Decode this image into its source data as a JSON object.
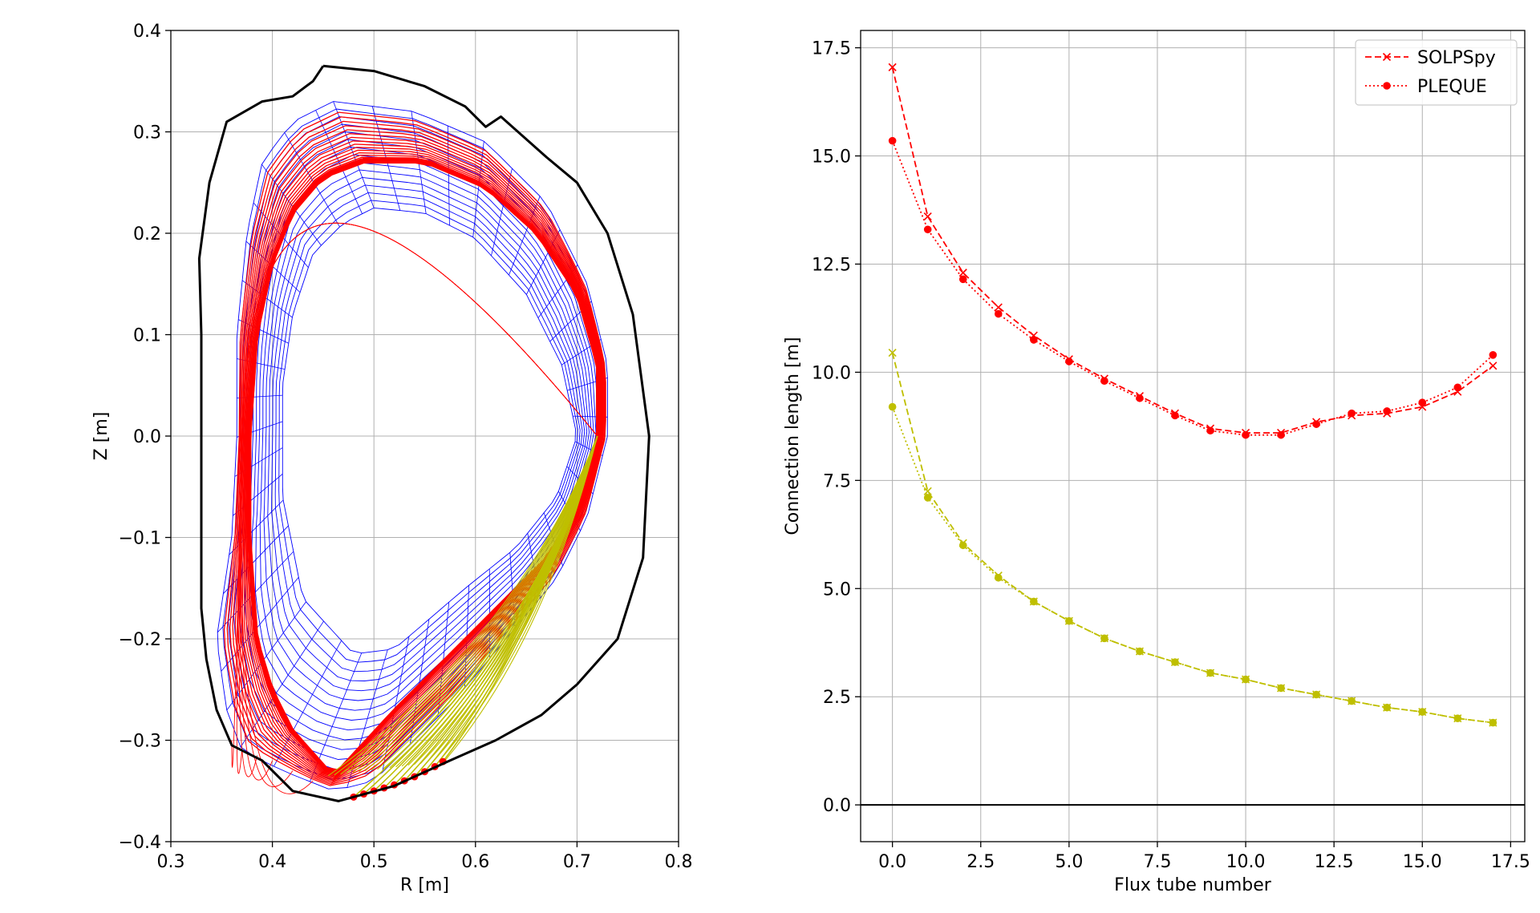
{
  "chart_data": [
    {
      "type": "line",
      "title": "",
      "xlabel": "R [m]",
      "ylabel": "Z [m]",
      "xlim": [
        0.3,
        0.8
      ],
      "ylim": [
        -0.4,
        0.4
      ],
      "xticks": [
        0.3,
        0.4,
        0.5,
        0.6,
        0.7,
        0.8
      ],
      "xtick_labels": [
        "0.3",
        "0.4",
        "0.5",
        "0.6",
        "0.7",
        "0.8"
      ],
      "yticks": [
        -0.4,
        -0.3,
        -0.2,
        -0.1,
        0.0,
        0.1,
        0.2,
        0.3,
        0.4
      ],
      "ytick_labels": [
        "−0.4",
        "−0.3",
        "−0.2",
        "−0.1",
        "0.0",
        "0.1",
        "0.2",
        "0.3",
        "0.4"
      ],
      "grid": true,
      "colors": {
        "wall": "#000000",
        "mesh": "#0000ff",
        "flux_tubes": "#ff0000",
        "divertor_tubes": "#bfbf00"
      },
      "wall": [
        [
          0.45,
          0.365
        ],
        [
          0.5,
          0.36
        ],
        [
          0.55,
          0.345
        ],
        [
          0.59,
          0.325
        ],
        [
          0.61,
          0.305
        ],
        [
          0.625,
          0.315
        ],
        [
          0.67,
          0.275
        ],
        [
          0.7,
          0.25
        ],
        [
          0.73,
          0.2
        ],
        [
          0.755,
          0.12
        ],
        [
          0.771,
          0.0
        ],
        [
          0.765,
          -0.12
        ],
        [
          0.74,
          -0.2
        ],
        [
          0.7,
          -0.245
        ],
        [
          0.665,
          -0.275
        ],
        [
          0.62,
          -0.3
        ],
        [
          0.575,
          -0.32
        ],
        [
          0.52,
          -0.345
        ],
        [
          0.465,
          -0.36
        ],
        [
          0.42,
          -0.35
        ],
        [
          0.39,
          -0.32
        ],
        [
          0.36,
          -0.305
        ],
        [
          0.345,
          -0.27
        ],
        [
          0.335,
          -0.22
        ],
        [
          0.33,
          -0.17
        ],
        [
          0.33,
          -0.05
        ],
        [
          0.33,
          0.1
        ],
        [
          0.328,
          0.175
        ],
        [
          0.338,
          0.25
        ],
        [
          0.355,
          0.31
        ],
        [
          0.39,
          0.33
        ],
        [
          0.42,
          0.335
        ],
        [
          0.44,
          0.35
        ],
        [
          0.45,
          0.365
        ]
      ],
      "separatrix": [
        [
          0.49,
          0.27
        ],
        [
          0.55,
          0.27
        ],
        [
          0.61,
          0.245
        ],
        [
          0.66,
          0.2
        ],
        [
          0.7,
          0.14
        ],
        [
          0.72,
          0.07
        ],
        [
          0.72,
          0.0
        ],
        [
          0.7,
          -0.07
        ],
        [
          0.67,
          -0.12
        ],
        [
          0.62,
          -0.17
        ],
        [
          0.57,
          -0.22
        ],
        [
          0.52,
          -0.27
        ],
        [
          0.46,
          -0.335
        ],
        [
          0.42,
          -0.29
        ],
        [
          0.4,
          -0.25
        ],
        [
          0.385,
          -0.2
        ],
        [
          0.378,
          -0.1
        ],
        [
          0.378,
          0.0
        ],
        [
          0.385,
          0.1
        ],
        [
          0.4,
          0.17
        ],
        [
          0.42,
          0.22
        ],
        [
          0.45,
          0.255
        ],
        [
          0.49,
          0.27
        ]
      ],
      "core_boundary": [
        [
          0.5,
          0.225
        ],
        [
          0.55,
          0.22
        ],
        [
          0.6,
          0.195
        ],
        [
          0.65,
          0.14
        ],
        [
          0.685,
          0.07
        ],
        [
          0.7,
          0.0
        ],
        [
          0.68,
          -0.06
        ],
        [
          0.64,
          -0.11
        ],
        [
          0.59,
          -0.15
        ],
        [
          0.52,
          -0.21
        ],
        [
          0.48,
          -0.215
        ],
        [
          0.43,
          -0.16
        ],
        [
          0.41,
          -0.06
        ],
        [
          0.41,
          0.05
        ],
        [
          0.42,
          0.12
        ],
        [
          0.44,
          0.18
        ],
        [
          0.47,
          0.21
        ],
        [
          0.5,
          0.225
        ]
      ],
      "mesh_outer": [
        [
          0.46,
          0.33
        ],
        [
          0.54,
          0.32
        ],
        [
          0.61,
          0.29
        ],
        [
          0.67,
          0.23
        ],
        [
          0.71,
          0.15
        ],
        [
          0.73,
          0.07
        ],
        [
          0.73,
          0.0
        ],
        [
          0.71,
          -0.08
        ],
        [
          0.68,
          -0.14
        ],
        [
          0.63,
          -0.2
        ],
        [
          0.58,
          -0.26
        ],
        [
          0.54,
          -0.3
        ],
        [
          0.5,
          -0.34
        ],
        [
          0.46,
          -0.35
        ],
        [
          0.41,
          -0.33
        ],
        [
          0.37,
          -0.31
        ],
        [
          0.355,
          -0.27
        ],
        [
          0.345,
          -0.2
        ],
        [
          0.36,
          -0.1
        ],
        [
          0.365,
          0.0
        ],
        [
          0.365,
          0.1
        ],
        [
          0.375,
          0.2
        ],
        [
          0.39,
          0.27
        ],
        [
          0.42,
          0.31
        ],
        [
          0.46,
          0.33
        ]
      ],
      "divertor_fan": {
        "from": [
          0.72,
          0.0
        ],
        "to": [
          [
            0.48,
            -0.356
          ],
          [
            0.49,
            -0.353
          ],
          [
            0.5,
            -0.35
          ],
          [
            0.51,
            -0.347
          ],
          [
            0.52,
            -0.344
          ],
          [
            0.53,
            -0.34
          ],
          [
            0.54,
            -0.336
          ],
          [
            0.55,
            -0.331
          ],
          [
            0.56,
            -0.326
          ],
          [
            0.568,
            -0.321
          ]
        ]
      },
      "target_points": [
        [
          0.48,
          -0.356
        ],
        [
          0.49,
          -0.353
        ],
        [
          0.5,
          -0.35
        ],
        [
          0.51,
          -0.347
        ],
        [
          0.52,
          -0.344
        ],
        [
          0.53,
          -0.34
        ],
        [
          0.54,
          -0.336
        ],
        [
          0.55,
          -0.331
        ],
        [
          0.56,
          -0.326
        ],
        [
          0.568,
          -0.321
        ]
      ],
      "upper_fan": {
        "from": [
          0.73,
          0.0
        ],
        "to": [
          [
            0.36,
            -0.3
          ],
          [
            0.37,
            -0.31
          ],
          [
            0.385,
            -0.315
          ],
          [
            0.4,
            -0.32
          ],
          [
            0.42,
            -0.33
          ],
          [
            0.44,
            -0.34
          ]
        ]
      }
    },
    {
      "type": "line",
      "title": "",
      "xlabel": "Flux tube number",
      "ylabel": "Connection length [m]",
      "xlim": [
        -0.9,
        17.9
      ],
      "ylim": [
        -0.85,
        17.9
      ],
      "xticks": [
        0.0,
        2.5,
        5.0,
        7.5,
        10.0,
        12.5,
        15.0,
        17.5
      ],
      "xtick_labels": [
        "0.0",
        "2.5",
        "5.0",
        "7.5",
        "10.0",
        "12.5",
        "15.0",
        "17.5"
      ],
      "yticks": [
        0.0,
        2.5,
        5.0,
        7.5,
        10.0,
        12.5,
        15.0,
        17.5
      ],
      "ytick_labels": [
        "0.0",
        "2.5",
        "5.0",
        "7.5",
        "10.0",
        "12.5",
        "15.0",
        "17.5"
      ],
      "grid": true,
      "hline": 0.0,
      "legend_position": "top-right",
      "legend": [
        {
          "label": "SOLPSpy",
          "style": "dashed-x",
          "color": "#ff0000"
        },
        {
          "label": "PLEQUE",
          "style": "dotted-o",
          "color": "#ff0000"
        }
      ],
      "x": [
        0,
        1,
        2,
        3,
        4,
        5,
        6,
        7,
        8,
        9,
        10,
        11,
        12,
        13,
        14,
        15,
        16,
        17
      ],
      "series": [
        {
          "color": "#ff0000",
          "linestyle": "dashed",
          "marker": "x",
          "values": [
            17.05,
            13.6,
            12.3,
            11.5,
            10.85,
            10.3,
            9.85,
            9.45,
            9.05,
            8.7,
            8.6,
            8.6,
            8.85,
            9.0,
            9.05,
            9.2,
            9.55,
            10.15
          ]
        },
        {
          "color": "#ff0000",
          "linestyle": "dotted",
          "marker": "o",
          "values": [
            15.35,
            13.3,
            12.15,
            11.35,
            10.75,
            10.25,
            9.8,
            9.4,
            9.0,
            8.65,
            8.55,
            8.55,
            8.8,
            9.05,
            9.1,
            9.3,
            9.65,
            10.4
          ]
        },
        {
          "color": "#bfbf00",
          "linestyle": "dashed",
          "marker": "x",
          "values": [
            10.45,
            7.25,
            6.05,
            5.3,
            4.7,
            4.25,
            3.85,
            3.55,
            3.3,
            3.05,
            2.9,
            2.7,
            2.55,
            2.4,
            2.25,
            2.15,
            2.0,
            1.9
          ]
        },
        {
          "color": "#bfbf00",
          "linestyle": "dotted",
          "marker": "o",
          "values": [
            9.2,
            7.1,
            6.0,
            5.25,
            4.7,
            4.25,
            3.85,
            3.55,
            3.3,
            3.05,
            2.9,
            2.7,
            2.55,
            2.4,
            2.25,
            2.15,
            2.0,
            1.9
          ]
        }
      ]
    }
  ]
}
